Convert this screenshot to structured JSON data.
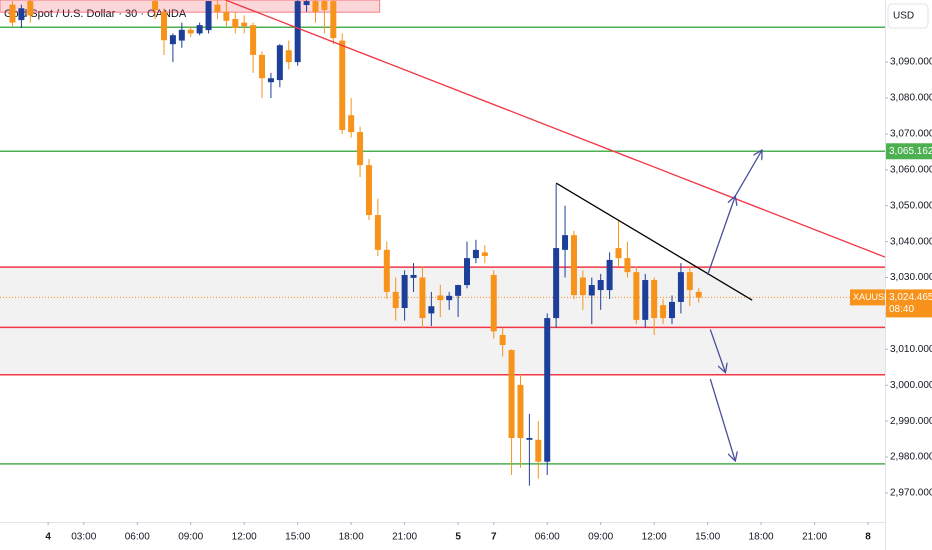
{
  "chart_data": {
    "type": "candlestick",
    "title": "Gold Spot / U.S. Dollar · 30 · OANDA",
    "currency_button": "USD",
    "xlim": [
      -5.4,
      93.9
    ],
    "ylim": [
      2961.9,
      3107.3
    ],
    "yticks": [
      {
        "value": 2970,
        "label": "2,970.000"
      },
      {
        "value": 2980,
        "label": "2,980.000"
      },
      {
        "value": 2990,
        "label": "2,990.000"
      },
      {
        "value": 3000,
        "label": "3,000.000"
      },
      {
        "value": 3010,
        "label": "3,010.000"
      },
      {
        "value": 3020,
        "label": "3,020.000"
      },
      {
        "value": 3030,
        "label": "3,030.000"
      },
      {
        "value": 3040,
        "label": "3,040.000"
      },
      {
        "value": 3050,
        "label": "3,050.000"
      },
      {
        "value": 3060,
        "label": "3,060.000"
      },
      {
        "value": 3070,
        "label": "3,070.000"
      },
      {
        "value": 3080,
        "label": "3,080.000"
      },
      {
        "value": 3090,
        "label": "3,090.000"
      }
    ],
    "xticks": [
      {
        "value": 0,
        "label": "4"
      },
      {
        "value": 4,
        "label": "03:00"
      },
      {
        "value": 10,
        "label": "06:00"
      },
      {
        "value": 16,
        "label": "09:00"
      },
      {
        "value": 22,
        "label": "12:00"
      },
      {
        "value": 28,
        "label": "15:00"
      },
      {
        "value": 34,
        "label": "18:00"
      },
      {
        "value": 40,
        "label": "21:00"
      },
      {
        "value": 46,
        "label": "5"
      },
      {
        "value": 50,
        "label": "7"
      },
      {
        "value": 56,
        "label": "06:00"
      },
      {
        "value": 62,
        "label": "09:00"
      },
      {
        "value": 68,
        "label": "12:00"
      },
      {
        "value": 74,
        "label": "15:00"
      },
      {
        "value": 80,
        "label": "18:00"
      },
      {
        "value": 86,
        "label": "21:00"
      },
      {
        "value": 92,
        "label": "8"
      }
    ],
    "grid": false,
    "up_color": "#1e3f99",
    "down_color": "#f7931a",
    "candles": {
      "x": [
        -4,
        -3,
        -2,
        12,
        13,
        14,
        15,
        16,
        17,
        18,
        19,
        20,
        21,
        22,
        23,
        24,
        25,
        26,
        27,
        28,
        29,
        30,
        31,
        32,
        33,
        34,
        35,
        36,
        37,
        38,
        39,
        40,
        41,
        42,
        43,
        44,
        45,
        46,
        47,
        48,
        49,
        50,
        51,
        52,
        53,
        54,
        55,
        56,
        57,
        58,
        59,
        60,
        61,
        62,
        63,
        64,
        65,
        66,
        67,
        68,
        69,
        70,
        71,
        72,
        73
      ],
      "open": [
        3106,
        3101.7,
        3107,
        3107,
        3104,
        3095,
        3096,
        3099,
        3098,
        3098.9,
        3106,
        3104,
        3102,
        3101,
        3100.3,
        3092,
        3084.4,
        3085,
        3093.3,
        3090,
        3105.9,
        3107,
        3107,
        3107,
        3096,
        3075.2,
        3070.5,
        3061.3,
        3047.4,
        3037.7,
        3026,
        3021.5,
        3029.9,
        3030,
        3020,
        3025,
        3023.7,
        3024.9,
        3027.9,
        3035.4,
        3037,
        3030.7,
        3014,
        3009.8,
        3000.1,
        2984.8,
        2984.8,
        2978.7,
        3018.7,
        3037.7,
        3041.8,
        3030,
        3025,
        3026.5,
        3026.5,
        3038.2,
        3035.4,
        3031.5,
        3018.2,
        3029.3,
        3022.3,
        3018.7,
        3023.2,
        3031.5,
        3026
      ],
      "high": [
        3107,
        3106,
        3107.2,
        3107.2,
        3105,
        3098,
        3101,
        3100,
        3101,
        3107,
        3107.2,
        3107,
        3104,
        3103,
        3101,
        3093,
        3087,
        3095,
        3096,
        3107.2,
        3107.2,
        3107.2,
        3107.2,
        3107.2,
        3098,
        3080,
        3072,
        3063,
        3052,
        3040,
        3030,
        3032,
        3034,
        3033,
        3026,
        3028,
        3026,
        3028,
        3040,
        3040.5,
        3039,
        3032,
        3016,
        3010,
        3003,
        2992,
        2990,
        3020,
        3056,
        3050,
        3043,
        3032,
        3030,
        3031,
        3037,
        3046,
        3040,
        3033,
        3031,
        3030,
        3024,
        3025,
        3034,
        3033,
        3027
      ],
      "low": [
        3100,
        3099.5,
        3101,
        3102,
        3092,
        3090,
        3094,
        3097,
        3097.5,
        3098,
        3102,
        3100,
        3098,
        3098,
        3087,
        3080,
        3080,
        3083,
        3088,
        3089,
        3104,
        3101,
        3098,
        3095,
        3070,
        3069,
        3058,
        3046,
        3036,
        3024,
        3018,
        3018,
        3026,
        3016,
        3016.5,
        3019,
        3021,
        3019,
        3027,
        3034,
        3034,
        3013,
        3008,
        2975,
        2977,
        2972,
        2974,
        2975,
        3016,
        3030,
        3024,
        3021,
        3017,
        3021,
        3024,
        3033,
        3030,
        3017,
        3016,
        3014,
        3017,
        3017,
        3020,
        3022,
        3023
      ],
      "close": [
        3101,
        3105,
        3103,
        3104.5,
        3096.1,
        3097.5,
        3099,
        3098,
        3100.3,
        3107,
        3104,
        3101.5,
        3099.5,
        3100,
        3092,
        3085.5,
        3085.5,
        3094.7,
        3090,
        3107,
        3107,
        3104,
        3104.5,
        3096.7,
        3071.1,
        3070.5,
        3061.3,
        3047.4,
        3037.7,
        3026,
        3021.5,
        3030.7,
        3030.7,
        3018.7,
        3022,
        3023.7,
        3024.9,
        3027.9,
        3035.4,
        3037.7,
        3036,
        3015,
        3011.2,
        2985.3,
        2985.3,
        2985.3,
        2978.7,
        3018.7,
        3038.2,
        3041.8,
        3025.1,
        3025.1,
        3027.9,
        3029.3,
        3034.9,
        3035.4,
        3031.5,
        3018.2,
        3029.3,
        3018.7,
        3018.7,
        3023.2,
        3031.5,
        3026.5,
        3024.465
      ]
    },
    "zones": [
      {
        "y": [
          3016.1,
          3032.9
        ],
        "color": "#f2f2f2"
      },
      {
        "y": [
          3002.9,
          3016.1
        ],
        "color": "#f2f2f2"
      }
    ],
    "box": {
      "x": [
        -5.4,
        37.2
      ],
      "y": [
        3103.9,
        3107.3
      ],
      "color": "#f23645"
    },
    "levels": [
      {
        "value": 3099.7,
        "color": "#4caf50"
      },
      {
        "value": 3065.162,
        "label": "3,065.162",
        "color": "#4caf50"
      },
      {
        "value": 3032.9,
        "color": "#f23645"
      },
      {
        "value": 3016.1,
        "color": "#f23645"
      },
      {
        "value": 3002.9,
        "color": "#f23645"
      },
      {
        "value": 2978.1,
        "color": "#4caf50"
      }
    ],
    "trendlines": [
      {
        "x": [
          19.9,
          93.9
        ],
        "y": [
          3107.3,
          3035.7
        ],
        "color": "#f23645"
      },
      {
        "x": [
          57,
          79
        ],
        "y": [
          3056.3,
          3023.7
        ],
        "color": "#000000"
      }
    ],
    "arrows": [
      {
        "x": [
          74,
          77.1
        ],
        "y": [
          3030.7,
          3052.7
        ]
      },
      {
        "x": [
          77.1,
          80.1
        ],
        "y": [
          3052.7,
          3065.5
        ]
      },
      {
        "x": [
          74.3,
          76
        ],
        "y": [
          3015.5,
          3003.5
        ]
      },
      {
        "x": [
          74.3,
          77.1
        ],
        "y": [
          3001.7,
          2978.9
        ]
      }
    ],
    "arrow_color": "#4a4f9c",
    "last_price": {
      "value": 3024.465,
      "label": "3,024.465",
      "symbol": "XAUUSD",
      "countdown": "08:40",
      "color": "#f7931a"
    }
  }
}
